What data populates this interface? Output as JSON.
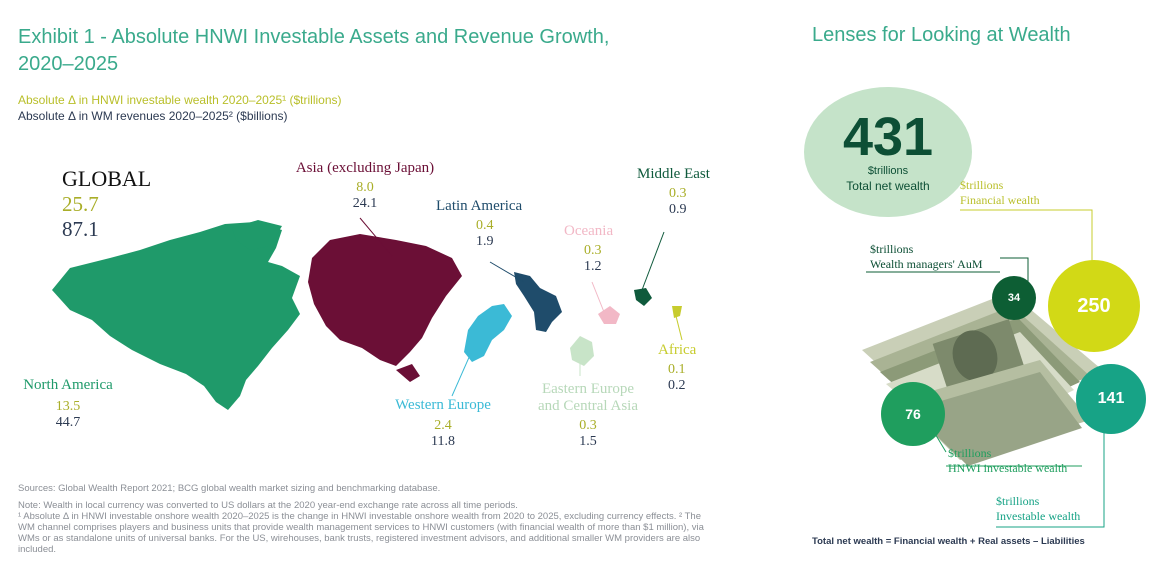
{
  "title": "Exhibit 1 - Absolute HNWI Investable Assets and Revenue Growth, 2020–2025",
  "legend": {
    "wealth": "Absolute Δ in HNWI investable wealth 2020–2025¹ ($trillions)",
    "revenue": "Absolute Δ in WM revenues 2020–2025² ($billions)"
  },
  "colors": {
    "wealth": "#a9ae28",
    "revenue": "#2c3a52",
    "title": "#3aaa8c"
  },
  "chart_data": [
    {
      "type": "table",
      "series": [
        {
          "name": "Absolute Δ in HNWI investable wealth 2020–2025¹ ($trillions)",
          "values": [
            25.7,
            13.5,
            8.0,
            0.4,
            2.4,
            0.3,
            0.3,
            0.3,
            0.1
          ]
        },
        {
          "name": "Absolute Δ in WM revenues 2020–2025² ($billions)",
          "values": [
            87.1,
            44.7,
            24.1,
            1.9,
            11.8,
            1.2,
            1.5,
            0.9,
            0.2
          ]
        }
      ],
      "categories": [
        "GLOBAL",
        "North America",
        "Asia (excluding Japan)",
        "Latin America",
        "Western Europe",
        "Oceania",
        "Eastern Europe and Central Asia",
        "Middle East",
        "Africa"
      ],
      "regions": [
        {
          "name": "GLOBAL",
          "wealth": "25.7",
          "revenue": "87.1",
          "color": "#111111"
        },
        {
          "name": "North America",
          "wealth": "13.5",
          "revenue": "44.7",
          "color": "#1f9a6a"
        },
        {
          "name": "Asia (excluding Japan)",
          "wealth": "8.0",
          "revenue": "24.1",
          "color": "#6b0f36"
        },
        {
          "name": "Latin America",
          "wealth": "0.4",
          "revenue": "1.9",
          "color": "#1f4c6b"
        },
        {
          "name": "Western Europe",
          "wealth": "2.4",
          "revenue": "11.8",
          "color": "#3bbad6"
        },
        {
          "name": "Oceania",
          "wealth": "0.3",
          "revenue": "1.2",
          "color": "#f2b8c6"
        },
        {
          "name": "Eastern Europe",
          "name2": "and Central Asia",
          "wealth": "0.3",
          "revenue": "1.5",
          "color": "#c8e4c8"
        },
        {
          "name": "Middle East",
          "wealth": "0.3",
          "revenue": "0.9",
          "color": "#0f5a3c"
        },
        {
          "name": "Africa",
          "wealth": "0.1",
          "revenue": "0.2",
          "color": "#c7cc2e"
        }
      ]
    },
    {
      "type": "bubble",
      "title": "Lenses for Looking at Wealth",
      "total": {
        "value": "431",
        "unit": "$trillions",
        "label": "Total net wealth",
        "color": "#c5e3c9"
      },
      "bubbles": [
        {
          "value": "250",
          "unit": "$trillions",
          "label": "Financial wealth",
          "color": "#d2d916"
        },
        {
          "value": "34",
          "unit": "$trillions",
          "label": "Wealth managers' AuM",
          "color": "#0d5e34"
        },
        {
          "value": "76",
          "unit": "$trillions",
          "label": "HNWI investable wealth",
          "color": "#1f9e5e"
        },
        {
          "value": "141",
          "unit": "$trillions",
          "label": "Investable wealth",
          "color": "#17a386"
        }
      ],
      "formula": "Total net wealth = Financial wealth + Real assets – Liabilities"
    }
  ],
  "notes": {
    "sources": "Sources: Global Wealth Report 2021; BCG global wealth market sizing and benchmarking database.",
    "note1": "Note: Wealth in local currency was converted to US dollars at the 2020 year-end exchange rate across all time periods.",
    "note2": "¹ Absolute Δ in HNWI investable onshore wealth 2020–2025 is the change in HNWI investable onshore wealth from 2020 to 2025, excluding currency effects. ² The WM channel comprises players and business units that provide wealth management services to HNWI customers (with financial wealth of more than $1 million), via WMs or as standalone units of universal banks. For the US, wirehouses, bank trusts, registered investment advisors, and additional smaller WM providers are also included."
  }
}
